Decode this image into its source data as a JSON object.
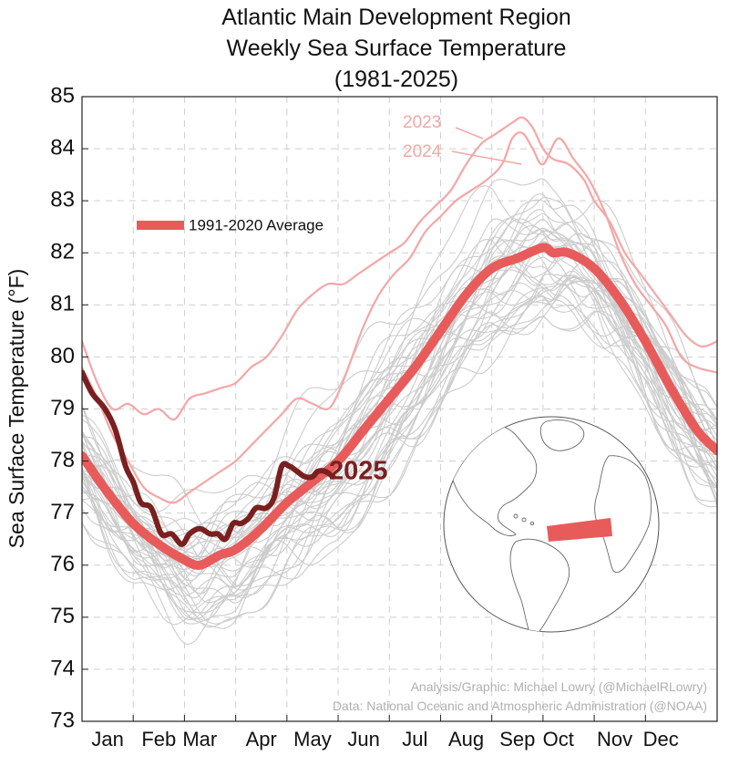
{
  "chart_data": {
    "type": "line",
    "title": [
      "Atlantic Main Development Region",
      "Weekly Sea Surface Temperature",
      "(1981-2025)"
    ],
    "ylabel": "Sea Surface Temperature (°F)",
    "xlabel": "",
    "ylim": [
      73,
      85
    ],
    "yticks": [
      73,
      74,
      75,
      76,
      77,
      78,
      79,
      80,
      81,
      82,
      83,
      84,
      85
    ],
    "xlim": [
      0,
      12.4
    ],
    "xticks": [
      {
        "label": "Jan",
        "pos": 0.5
      },
      {
        "label": "Feb",
        "pos": 1.5
      },
      {
        "label": "Mar",
        "pos": 2.3
      },
      {
        "label": "Apr",
        "pos": 3.5
      },
      {
        "label": "May",
        "pos": 4.5
      },
      {
        "label": "Jun",
        "pos": 5.5
      },
      {
        "label": "Jul",
        "pos": 6.5
      },
      {
        "label": "Aug",
        "pos": 7.5
      },
      {
        "label": "Sep",
        "pos": 8.5
      },
      {
        "label": "Oct",
        "pos": 9.3
      },
      {
        "label": "Nov",
        "pos": 10.4
      },
      {
        "label": "Dec",
        "pos": 11.3
      }
    ],
    "grid": true,
    "legend": {
      "position": "upper-left",
      "entries": [
        "1991-2020 Average"
      ]
    },
    "series": [
      {
        "name": "1991-2020 Average",
        "color": "#e85b5b",
        "x": [
          0,
          0.5,
          1.0,
          1.5,
          2.0,
          2.3,
          2.7,
          3.0,
          3.5,
          4.0,
          4.5,
          5.0,
          5.5,
          6.0,
          6.5,
          7.0,
          7.5,
          8.0,
          8.5,
          9.0,
          9.2,
          9.5,
          10.0,
          10.5,
          11.0,
          11.5,
          12.0,
          12.4
        ],
        "values": [
          78.1,
          77.4,
          76.8,
          76.4,
          76.1,
          76.0,
          76.2,
          76.3,
          76.7,
          77.2,
          77.6,
          78.0,
          78.6,
          79.2,
          79.8,
          80.5,
          81.2,
          81.7,
          81.9,
          82.1,
          82.0,
          82.0,
          81.7,
          81.1,
          80.3,
          79.4,
          78.6,
          78.2
        ]
      },
      {
        "name": "2025",
        "color": "#7a1f1f",
        "x": [
          0,
          0.2,
          0.45,
          0.65,
          0.85,
          1.0,
          1.15,
          1.35,
          1.55,
          1.75,
          1.95,
          2.1,
          2.3,
          2.5,
          2.65,
          2.8,
          2.95,
          3.1,
          3.25,
          3.4,
          3.6,
          3.75,
          3.9,
          4.05,
          4.2,
          4.35,
          4.5,
          4.6,
          4.75,
          4.9
        ],
        "values": [
          79.7,
          79.3,
          79.0,
          78.6,
          77.9,
          77.6,
          77.2,
          77.1,
          76.6,
          76.6,
          76.4,
          76.6,
          76.7,
          76.6,
          76.6,
          76.5,
          76.8,
          76.8,
          76.9,
          77.1,
          77.1,
          77.3,
          77.9,
          77.9,
          77.8,
          77.7,
          77.7,
          77.8,
          77.8,
          77.7
        ]
      },
      {
        "name": "2023",
        "color": "#f5a6a6",
        "x": [
          0,
          0.3,
          0.6,
          0.9,
          1.2,
          1.5,
          1.8,
          2.1,
          2.4,
          2.7,
          3.0,
          3.3,
          3.6,
          3.9,
          4.2,
          4.5,
          4.8,
          5.1,
          5.4,
          5.7,
          6.0,
          6.3,
          6.6,
          6.9,
          7.2,
          7.5,
          7.8,
          8.1,
          8.4,
          8.6,
          8.8,
          9.0,
          9.2,
          9.5,
          9.8,
          10.0,
          10.3,
          10.6,
          10.9,
          11.2,
          11.5,
          11.8,
          12.1,
          12.4
        ],
        "values": [
          80.3,
          79.5,
          79.0,
          79.1,
          78.9,
          79.0,
          78.8,
          79.2,
          79.3,
          79.4,
          79.5,
          79.8,
          80.0,
          80.4,
          80.9,
          81.2,
          81.4,
          81.4,
          81.6,
          81.8,
          82.0,
          82.2,
          82.6,
          82.9,
          83.2,
          83.7,
          84.1,
          84.3,
          84.5,
          84.6,
          84.4,
          84.0,
          83.8,
          83.7,
          83.4,
          83.0,
          82.6,
          82.0,
          81.6,
          81.2,
          80.8,
          80.4,
          80.2,
          80.3
        ]
      },
      {
        "name": "2024",
        "color": "#f5a6a6",
        "x": [
          0,
          0.3,
          0.6,
          0.9,
          1.2,
          1.5,
          1.8,
          2.1,
          2.4,
          2.7,
          3.0,
          3.3,
          3.6,
          3.9,
          4.2,
          4.5,
          4.8,
          5.0,
          5.2,
          5.5,
          5.8,
          6.1,
          6.4,
          6.7,
          7.0,
          7.3,
          7.6,
          7.9,
          8.2,
          8.4,
          8.6,
          8.8,
          9.0,
          9.3,
          9.6,
          9.9,
          10.2,
          10.5,
          10.8,
          11.1,
          11.4,
          11.7,
          12.0,
          12.4
        ],
        "values": [
          79.8,
          79.2,
          78.5,
          78.0,
          77.5,
          77.3,
          77.2,
          77.4,
          77.6,
          77.8,
          78.0,
          78.3,
          78.6,
          78.9,
          79.2,
          79.1,
          79.0,
          79.3,
          79.8,
          80.6,
          81.2,
          81.6,
          81.9,
          82.4,
          82.7,
          83.0,
          83.2,
          83.4,
          83.7,
          84.2,
          84.3,
          84.0,
          83.7,
          84.2,
          83.8,
          83.4,
          82.8,
          82.0,
          81.4,
          81.0,
          80.6,
          80.0,
          79.8,
          79.7
        ]
      }
    ],
    "annotations": {
      "year_2023": "2023",
      "year_2024": "2024",
      "year_2025": "2025"
    },
    "credits": [
      "Analysis/Graphic: Michael Lowry (@MichaelRLowry)",
      "Data: National Oceanic and Atmospheric Administration (@NOAA)"
    ],
    "inset": {
      "type": "globe-map",
      "highlight_color": "#e85b5b"
    }
  }
}
